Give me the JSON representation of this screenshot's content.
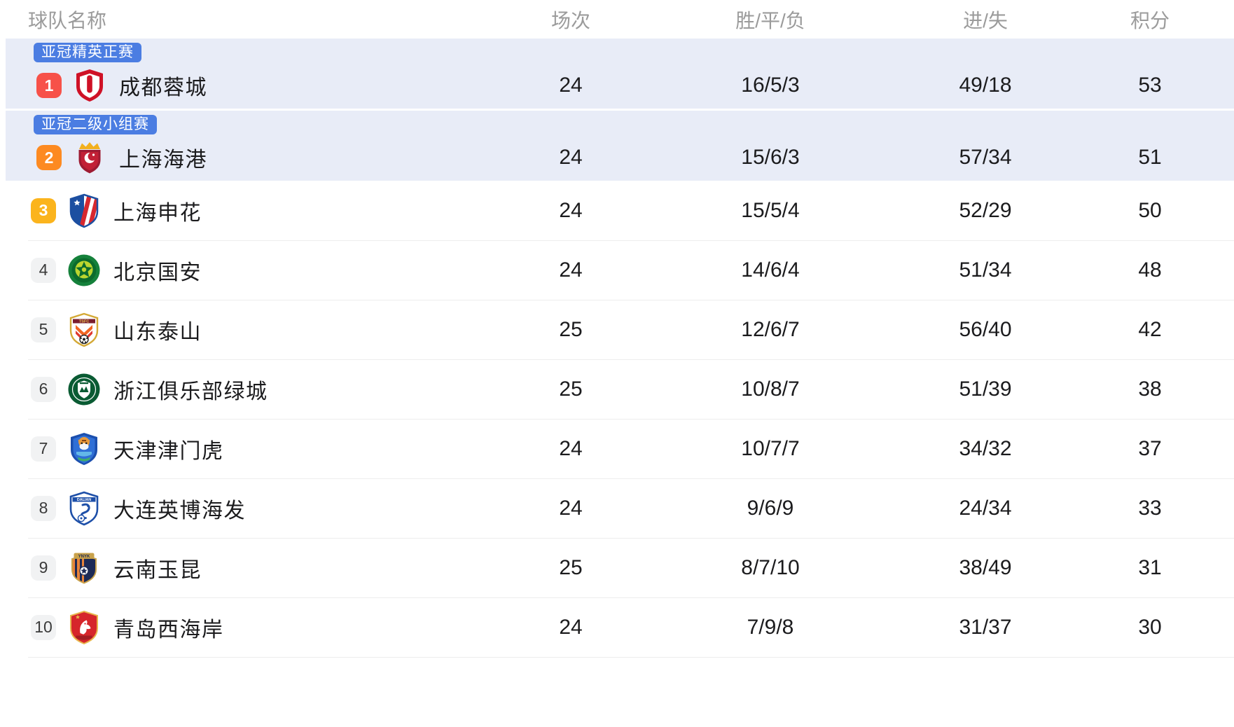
{
  "header": {
    "team": "球队名称",
    "played": "场次",
    "record": "胜/平/负",
    "goals": "进/失",
    "points": "积分"
  },
  "colors": {
    "highlight_row_bg": "#e8ecf7",
    "competition_badge_bg": "#4b7de2",
    "rank1_red": "#f75149",
    "rank2_orange": "#fd8a21",
    "rank3_amber": "#fbb41d",
    "rank_default_bg": "#f1f2f3",
    "divider": "#ededed",
    "header_text": "#9b9b9b",
    "body_text": "#1b1b1d"
  },
  "rows": [
    {
      "rank": "1",
      "rank_style": "red",
      "badge": "亚冠精英正赛",
      "highlighted": true,
      "crest_icon": "chengdu-rongcheng-crest",
      "crest_text": "",
      "name": "成都蓉城",
      "played": "24",
      "record": "16/5/3",
      "goals": "49/18",
      "points": "53"
    },
    {
      "rank": "2",
      "rank_style": "orange",
      "badge": "亚冠二级小组赛",
      "highlighted": true,
      "crest_icon": "shanghai-port-crest",
      "crest_text": "",
      "name": "上海海港",
      "played": "24",
      "record": "15/6/3",
      "goals": "57/34",
      "points": "51"
    },
    {
      "rank": "3",
      "rank_style": "amber",
      "badge": "",
      "highlighted": false,
      "crest_icon": "shanghai-shenhua-crest",
      "crest_text": "",
      "name": "上海申花",
      "played": "24",
      "record": "15/5/4",
      "goals": "52/29",
      "points": "50"
    },
    {
      "rank": "4",
      "rank_style": "gray",
      "badge": "",
      "highlighted": false,
      "crest_icon": "beijing-guoan-crest",
      "crest_text": "",
      "name": "北京国安",
      "played": "24",
      "record": "14/6/4",
      "goals": "51/34",
      "points": "48"
    },
    {
      "rank": "5",
      "rank_style": "gray",
      "badge": "",
      "highlighted": false,
      "crest_icon": "shandong-taishan-crest",
      "crest_text": "TSFC",
      "name": "山东泰山",
      "played": "25",
      "record": "12/6/7",
      "goals": "56/40",
      "points": "42"
    },
    {
      "rank": "6",
      "rank_style": "gray",
      "badge": "",
      "highlighted": false,
      "crest_icon": "zhejiang-lvcheng-crest",
      "crest_text": "",
      "name": "浙江俱乐部绿城",
      "played": "25",
      "record": "10/8/7",
      "goals": "51/39",
      "points": "38"
    },
    {
      "rank": "7",
      "rank_style": "gray",
      "badge": "",
      "highlighted": false,
      "crest_icon": "tianjin-jinmenhu-crest",
      "crest_text": "",
      "name": "天津津门虎",
      "played": "24",
      "record": "10/7/7",
      "goals": "34/32",
      "points": "37"
    },
    {
      "rank": "8",
      "rank_style": "gray",
      "badge": "",
      "highlighted": false,
      "crest_icon": "dalian-yingbo-crest",
      "crest_text": "DALIAN",
      "name": "大连英博海发",
      "played": "24",
      "record": "9/6/9",
      "goals": "24/34",
      "points": "33"
    },
    {
      "rank": "9",
      "rank_style": "gray",
      "badge": "",
      "highlighted": false,
      "crest_icon": "yunnan-yukun-crest",
      "crest_text": "YNYK",
      "name": "云南玉昆",
      "played": "25",
      "record": "8/7/10",
      "goals": "38/49",
      "points": "31"
    },
    {
      "rank": "10",
      "rank_style": "gray",
      "badge": "",
      "highlighted": false,
      "crest_icon": "qingdao-west-coast-crest",
      "crest_text": "",
      "name": "青岛西海岸",
      "played": "24",
      "record": "7/9/8",
      "goals": "31/37",
      "points": "30"
    }
  ]
}
